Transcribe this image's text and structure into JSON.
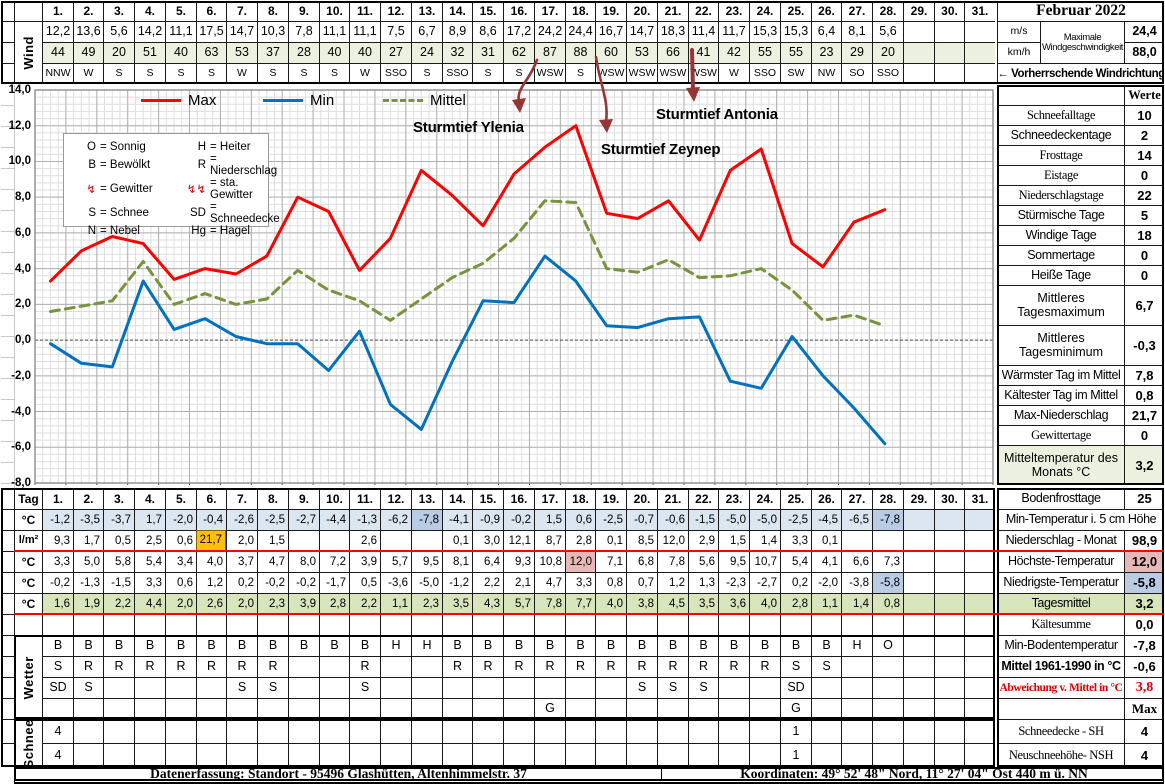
{
  "sheet_title": "Februar 2022",
  "days": [
    "1.",
    "2.",
    "3.",
    "4.",
    "5.",
    "6.",
    "7.",
    "8.",
    "9.",
    "10.",
    "11.",
    "12.",
    "13.",
    "14.",
    "15.",
    "16.",
    "17.",
    "18.",
    "19.",
    "20.",
    "21.",
    "22.",
    "23.",
    "24.",
    "25.",
    "26.",
    "27.",
    "28.",
    "29.",
    "30.",
    "31."
  ],
  "wind": {
    "label": "Wind",
    "unit_ms": "m/s",
    "unit_kmh": "km/h",
    "speed_ms": [
      "12,2",
      "13,6",
      "5,6",
      "14,2",
      "11,1",
      "17,5",
      "14,7",
      "10,3",
      "7,8",
      "11,1",
      "11,1",
      "7,5",
      "6,7",
      "8,9",
      "8,6",
      "17,2",
      "24,2",
      "24,4",
      "16,7",
      "14,7",
      "18,3",
      "11,4",
      "11,7",
      "15,3",
      "15,3",
      "6,4",
      "8,1",
      "5,6",
      "",
      "",
      ""
    ],
    "speed_kmh": [
      "44",
      "49",
      "20",
      "51",
      "40",
      "63",
      "53",
      "37",
      "28",
      "40",
      "40",
      "27",
      "24",
      "32",
      "31",
      "62",
      "87",
      "88",
      "60",
      "53",
      "66",
      "41",
      "42",
      "55",
      "55",
      "23",
      "29",
      "20",
      "",
      "",
      ""
    ],
    "direction": [
      "NNW",
      "W",
      "S",
      "S",
      "S",
      "S",
      "W",
      "S",
      "S",
      "S",
      "W",
      "SSO",
      "S",
      "SSO",
      "S",
      "S",
      "WSW",
      "S",
      "WSW",
      "WSW",
      "WSW",
      "WSW",
      "W",
      "SSO",
      "SW",
      "NW",
      "SO",
      "SSO",
      "",
      "",
      ""
    ],
    "max_label": "Maximale Windgeschwindigkeit",
    "max_ms": "24,4",
    "max_kmh": "88,0",
    "prevailing": "←  Vorherrschende Windrichtung"
  },
  "chart_data": {
    "type": "line",
    "x": [
      1,
      2,
      3,
      4,
      5,
      6,
      7,
      8,
      9,
      10,
      11,
      12,
      13,
      14,
      15,
      16,
      17,
      18,
      19,
      20,
      21,
      22,
      23,
      24,
      25,
      26,
      27,
      28
    ],
    "series": [
      {
        "name": "Max",
        "color": "#ff0000",
        "dash": null,
        "values": [
          3.3,
          5.0,
          5.8,
          5.4,
          3.4,
          4.0,
          3.7,
          4.7,
          8.0,
          7.2,
          3.9,
          5.7,
          9.5,
          8.1,
          6.4,
          9.3,
          10.8,
          12.0,
          7.1,
          6.8,
          7.8,
          5.6,
          9.5,
          10.7,
          5.4,
          4.1,
          6.6,
          7.3
        ]
      },
      {
        "name": "Min",
        "color": "#0070c0",
        "dash": null,
        "values": [
          -0.2,
          -1.3,
          -1.5,
          3.3,
          0.6,
          1.2,
          0.2,
          -0.2,
          -0.2,
          -1.7,
          0.5,
          -3.6,
          -5.0,
          -1.2,
          2.2,
          2.1,
          4.7,
          3.3,
          0.8,
          0.7,
          1.2,
          1.3,
          -2.3,
          -2.7,
          0.2,
          -2.0,
          -3.8,
          -5.8
        ]
      },
      {
        "name": "Mittel",
        "color": "#77933c",
        "dash": "9,6",
        "values": [
          1.6,
          1.9,
          2.2,
          4.4,
          2.0,
          2.6,
          2.0,
          2.3,
          3.9,
          2.8,
          2.2,
          1.1,
          2.3,
          3.5,
          4.3,
          5.7,
          7.8,
          7.7,
          4.0,
          3.8,
          4.5,
          3.5,
          3.6,
          4.0,
          2.8,
          1.1,
          1.4,
          0.8
        ]
      }
    ],
    "ylim": [
      -8,
      14
    ],
    "ytick_step": 2,
    "yticks": [
      "14,0",
      "12,0",
      "10,0",
      "8,0",
      "6,0",
      "4,0",
      "2,0",
      "0,0",
      "-2,0",
      "-4,0",
      "-6,0",
      "-8,0"
    ],
    "xlim": [
      0,
      31
    ],
    "grid": "minor+major",
    "legend_position": "top-inside",
    "annotations": [
      "Sturmtief Ylenia",
      "Sturmtief Zeynep",
      "Sturmtief Antonia"
    ]
  },
  "symbol_legend": {
    "rows": [
      {
        "l_sym": "O",
        "l_txt": "= Sonnig",
        "l_red": false,
        "r_sym": "H",
        "r_txt": "= Heiter",
        "r_red": false
      },
      {
        "l_sym": "B",
        "l_txt": "= Bewölkt",
        "l_red": false,
        "r_sym": "R",
        "r_txt": "= Niederschlag",
        "r_red": false
      },
      {
        "l_sym": "↯",
        "l_txt": "= Gewitter",
        "l_red": true,
        "r_sym": "↯↯",
        "r_txt": "= sta. Gewitter",
        "r_red": true
      },
      {
        "l_sym": "S",
        "l_txt": "= Schnee",
        "l_red": false,
        "r_sym": "SD",
        "r_txt": "= Schneedecke",
        "r_red": false
      },
      {
        "l_sym": "N",
        "l_txt": "= Nebel",
        "l_red": false,
        "r_sym": "Hg",
        "r_txt": "= Hagel",
        "r_red": false
      }
    ]
  },
  "stats_right": {
    "header": "Werte",
    "rows": [
      {
        "label": "Schneefalltage",
        "value": "10",
        "serif": true
      },
      {
        "label": "Schneedeckentage",
        "value": "2"
      },
      {
        "label": "Frosttage",
        "value": "14",
        "serif": true
      },
      {
        "label": "Eistage",
        "value": "0",
        "serif": true
      },
      {
        "label": "Niederschlagstage",
        "value": "22",
        "serif": true
      },
      {
        "label": "Stürmische Tage",
        "value": "5"
      },
      {
        "label": "Windige Tage",
        "value": "18"
      },
      {
        "label": "Sommertage",
        "value": "0"
      },
      {
        "label": "Heiße Tage",
        "value": "0"
      },
      {
        "label": "Mittleres Tagesmaximum",
        "value": "6,7",
        "tall": true
      },
      {
        "label": "Mittleres Tagesminimum",
        "value": "-0,3",
        "tall": true
      },
      {
        "label": "Wärmster Tag im Mittel",
        "value": "7,8"
      },
      {
        "label": "Kältester Tag im Mittel",
        "value": "0,8"
      },
      {
        "label": "Max-Niederschlag",
        "value": "21,7"
      },
      {
        "label": "Gewittertage",
        "value": "0",
        "serif": true
      },
      {
        "label": "Mitteltemperatur des Monats °C",
        "value": "3,2",
        "tall": true,
        "green": true
      }
    ]
  },
  "daily": {
    "corner": "Tag",
    "rows": [
      {
        "unit": "°C",
        "name": "min-temp-5cm",
        "bg": "blue",
        "special": {
          "12": "blue2",
          "27": "blue2"
        },
        "values": [
          "-1,2",
          "-3,5",
          "-3,7",
          "1,7",
          "-2,0",
          "-0,4",
          "-2,6",
          "-2,5",
          "-2,7",
          "-4,4",
          "-1,3",
          "-6,2",
          "-7,8",
          "-4,1",
          "-0,9",
          "-0,2",
          "1,5",
          "0,6",
          "-2,5",
          "-0,7",
          "-0,6",
          "-1,5",
          "-5,0",
          "-5,0",
          "-2,5",
          "-4,5",
          "-6,5",
          "-7,8",
          "",
          "",
          ""
        ]
      },
      {
        "unit": "l/m²",
        "name": "precipitation",
        "bg": "",
        "special": {
          "5": "orange"
        },
        "values": [
          "9,3",
          "1,7",
          "0,5",
          "2,5",
          "0,6",
          "21,7",
          "2,0",
          "1,5",
          "",
          "",
          "2,6",
          "",
          "",
          "0,1",
          "3,0",
          "12,1",
          "8,7",
          "2,8",
          "0,1",
          "8,5",
          "12,0",
          "2,9",
          "1,5",
          "1,4",
          "3,3",
          "0,1",
          "",
          "",
          "",
          "",
          ""
        ]
      },
      {
        "unit": "°C",
        "name": "max-temp",
        "bg": "",
        "special": {
          "17": "pink"
        },
        "values": [
          "3,3",
          "5,0",
          "5,8",
          "5,4",
          "3,4",
          "4,0",
          "3,7",
          "4,7",
          "8,0",
          "7,2",
          "3,9",
          "5,7",
          "9,5",
          "8,1",
          "6,4",
          "9,3",
          "10,8",
          "12,0",
          "7,1",
          "6,8",
          "7,8",
          "5,6",
          "9,5",
          "10,7",
          "5,4",
          "4,1",
          "6,6",
          "7,3",
          "",
          "",
          ""
        ]
      },
      {
        "unit": "°C",
        "name": "min-temp",
        "bg": "",
        "special": {
          "27": "blue2"
        },
        "values": [
          "-0,2",
          "-1,3",
          "-1,5",
          "3,3",
          "0,6",
          "1,2",
          "0,2",
          "-0,2",
          "-0,2",
          "-1,7",
          "0,5",
          "-3,6",
          "-5,0",
          "-1,2",
          "2,2",
          "2,1",
          "4,7",
          "3,3",
          "0,8",
          "0,7",
          "1,2",
          "1,3",
          "-2,3",
          "-2,7",
          "0,2",
          "-2,0",
          "-3,8",
          "-5,8",
          "",
          "",
          ""
        ]
      },
      {
        "unit": "°C",
        "name": "daily-mean",
        "bg": "green2",
        "special": {},
        "values": [
          "1,6",
          "1,9",
          "2,2",
          "4,4",
          "2,0",
          "2,6",
          "2,0",
          "2,3",
          "3,9",
          "2,8",
          "2,2",
          "1,1",
          "2,3",
          "3,5",
          "4,3",
          "5,7",
          "7,8",
          "7,7",
          "4,0",
          "3,8",
          "4,5",
          "3,5",
          "3,6",
          "4,0",
          "2,8",
          "1,1",
          "1,4",
          "0,8",
          "",
          "",
          ""
        ]
      }
    ]
  },
  "wetter": {
    "label": "Wetter",
    "rows": [
      [
        "B",
        "B",
        "B",
        "B",
        "B",
        "B",
        "B",
        "B",
        "B",
        "B",
        "B",
        "H",
        "H",
        "B",
        "B",
        "B",
        "B",
        "B",
        "B",
        "B",
        "B",
        "B",
        "B",
        "B",
        "B",
        "B",
        "H",
        "O",
        "",
        "",
        ""
      ],
      [
        "S",
        "R",
        "R",
        "R",
        "R",
        "R",
        "R",
        "R",
        "",
        "",
        "R",
        "",
        "",
        "R",
        "R",
        "R",
        "R",
        "R",
        "R",
        "R",
        "R",
        "R",
        "R",
        "R",
        "S",
        "S",
        "",
        "",
        "",
        "",
        ""
      ],
      [
        "SD",
        "S",
        "",
        "",
        "",
        "",
        "S",
        "S",
        "",
        "",
        "S",
        "",
        "",
        "",
        "",
        "",
        "",
        "",
        "",
        "S",
        "S",
        "S",
        "",
        "",
        "SD",
        "",
        "",
        "",
        "",
        "",
        ""
      ],
      [
        "",
        "",
        "",
        "",
        "",
        "",
        "",
        "",
        "",
        "",
        "",
        "",
        "",
        "",
        "",
        "",
        "G",
        "",
        "",
        "",
        "",
        "",
        "",
        "",
        "G",
        "",
        "",
        "",
        "",
        "",
        ""
      ]
    ]
  },
  "schnee": {
    "label": "Schnee",
    "rows": [
      [
        "4",
        "",
        "",
        "",
        "",
        "",
        "",
        "",
        "",
        "",
        "",
        "",
        "",
        "",
        "",
        "",
        "",
        "",
        "",
        "",
        "",
        "",
        "",
        "",
        "1",
        "",
        "",
        "",
        "",
        "",
        ""
      ],
      [
        "4",
        "",
        "",
        "",
        "",
        "",
        "",
        "",
        "",
        "",
        "",
        "",
        "",
        "",
        "",
        "",
        "",
        "",
        "",
        "",
        "",
        "",
        "",
        "",
        "1",
        "",
        "",
        "",
        "",
        "",
        ""
      ]
    ]
  },
  "stats_bottom": {
    "rows": [
      {
        "label": "Bodenfrosttage",
        "value": "25"
      },
      {
        "label": "Min-Temperatur i. 5 cm Höhe",
        "full": true
      },
      {
        "label": "Niederschlag - Monat",
        "value": "98,9"
      },
      {
        "label": "Höchste-Temperatur",
        "value": "12,0",
        "vcls": "pink"
      },
      {
        "label": "Niedrigste-Temperatur",
        "value": "-5,8",
        "vcls": "blue2"
      },
      {
        "label": "Tagesmittel",
        "value": "3,2",
        "rowcls": "green2"
      },
      {
        "label": "Kältesumme",
        "value": "0,0",
        "serif": true
      },
      {
        "label": "Min-Bodentemperatur",
        "value": "-7,8"
      },
      {
        "label": "Mittel 1961-1990 in °C",
        "value": "-0,6",
        "boldl": true
      },
      {
        "label": "Abweichung v. Mittel in °C",
        "value": "3,8",
        "red": true,
        "serif": true
      },
      {
        "label": "",
        "value": "Max",
        "serif": true,
        "vserif": true
      },
      {
        "label": "Schneedecke -   SH",
        "value": "4",
        "serif": true
      },
      {
        "label": "Neuschneehöhe- NSH",
        "value": "4",
        "serif": true
      }
    ]
  },
  "footer": {
    "left": "Datenerfassung:  Standort -  95496  Glashütten, Altenhimmelstr. 37",
    "right": "Koordinaten:  49° 52' 48\" Nord,   11° 27' 04\" Ost  440 m ü. NN"
  },
  "colors": {
    "max_line": "#ff0000",
    "min_line": "#0070c0",
    "mittel_line": "#77933c",
    "storm_arrow": "#963634",
    "grid_minor": "#dedede",
    "grid_major": "#b0b0b0",
    "fill_green": "#ebf1de",
    "fill_green2": "#d7e4bc",
    "fill_blue": "#dce6f1",
    "fill_blue2": "#b8cce4",
    "fill_pink": "#e6b8b7",
    "fill_orange": "#ffc000",
    "red_rule": "#ff0000"
  }
}
